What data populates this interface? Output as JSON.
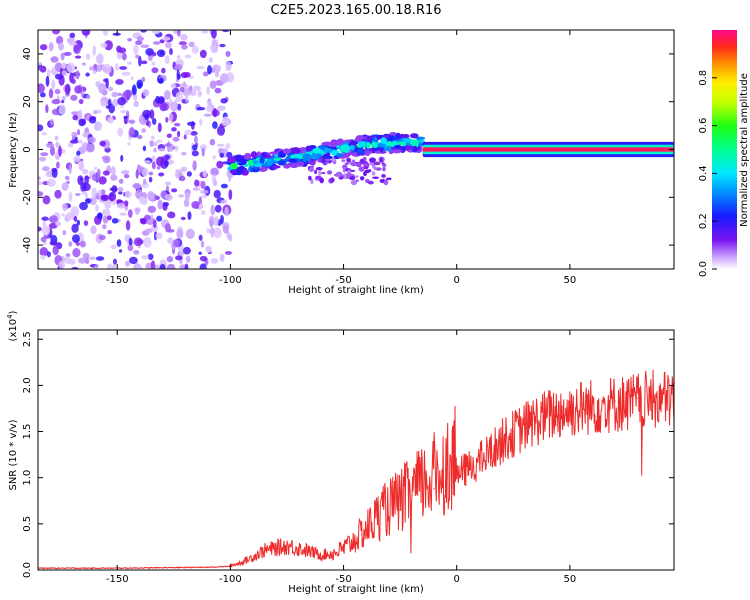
{
  "chart_data": [
    {
      "type": "heatmap",
      "title": "C2E5.2023.165.00.18.R16",
      "xlabel": "Height of straight line (km)",
      "ylabel": "Frequency (Hz)",
      "xlim": [
        -185,
        96
      ],
      "ylim": [
        -50,
        50
      ],
      "xticks": [
        -150,
        -100,
        -50,
        0,
        50
      ],
      "yticks": [
        -40,
        -20,
        0,
        20,
        40
      ],
      "colorbar": {
        "label": "Normalized spectral amplitude",
        "range": [
          0.0,
          1.0
        ],
        "ticks": [
          0.0,
          0.2,
          0.4,
          0.6,
          0.8
        ]
      },
      "regions": [
        {
          "description": "broadband low-amplitude noise",
          "x_range": [
            -185,
            -100
          ],
          "freq_range": [
            -50,
            50
          ],
          "amplitude": 0.1
        },
        {
          "description": "narrowband signal drifting up to ~3 Hz",
          "x_range": [
            -100,
            -15
          ],
          "freq_range": [
            -8,
            5
          ],
          "amplitude": 0.45
        },
        {
          "description": "stable narrowband signal at 0 Hz",
          "x_range": [
            -15,
            96
          ],
          "freq_range": [
            -1,
            1
          ],
          "amplitude": 0.97
        }
      ]
    },
    {
      "type": "line",
      "title": "",
      "xlabel": "Height of straight line (km)",
      "ylabel": "SNR (10 * v/v)",
      "ylabel_multiplier": "(x10",
      "ylabel_exponent": "4",
      "ylabel_close": ")",
      "xlim": [
        -185,
        96
      ],
      "ylim": [
        0,
        2.6
      ],
      "xticks": [
        -150,
        -100,
        -50,
        0,
        50
      ],
      "yticks": [
        0.0,
        0.5,
        1.0,
        1.5,
        2.0,
        2.5
      ],
      "y_tick_labels": [
        "0.0",
        "0.5",
        "1.0",
        "1.5",
        "2.0",
        "2.5"
      ],
      "series": [
        {
          "name": "SNR",
          "color": "#ee2b2b",
          "x": [
            -185,
            -150,
            -110,
            -100,
            -95,
            -90,
            -85,
            -80,
            -75,
            -70,
            -65,
            -60,
            -55,
            -50,
            -45,
            -40,
            -35,
            -30,
            -25,
            -20,
            -15,
            -10,
            -5,
            0,
            5,
            10,
            15,
            20,
            25,
            30,
            35,
            40,
            45,
            50,
            55,
            60,
            65,
            70,
            75,
            80,
            85,
            90,
            96
          ],
          "values": [
            0.02,
            0.02,
            0.03,
            0.04,
            0.07,
            0.12,
            0.18,
            0.2,
            0.22,
            0.2,
            0.17,
            0.14,
            0.15,
            0.2,
            0.28,
            0.38,
            0.5,
            0.58,
            0.65,
            0.72,
            0.8,
            0.88,
            0.96,
            1.05,
            1.12,
            1.2,
            1.3,
            1.42,
            1.5,
            1.58,
            1.65,
            1.7,
            1.74,
            1.76,
            1.79,
            1.8,
            1.82,
            1.83,
            1.84,
            1.86,
            1.87,
            1.88,
            1.88
          ]
        }
      ]
    }
  ]
}
